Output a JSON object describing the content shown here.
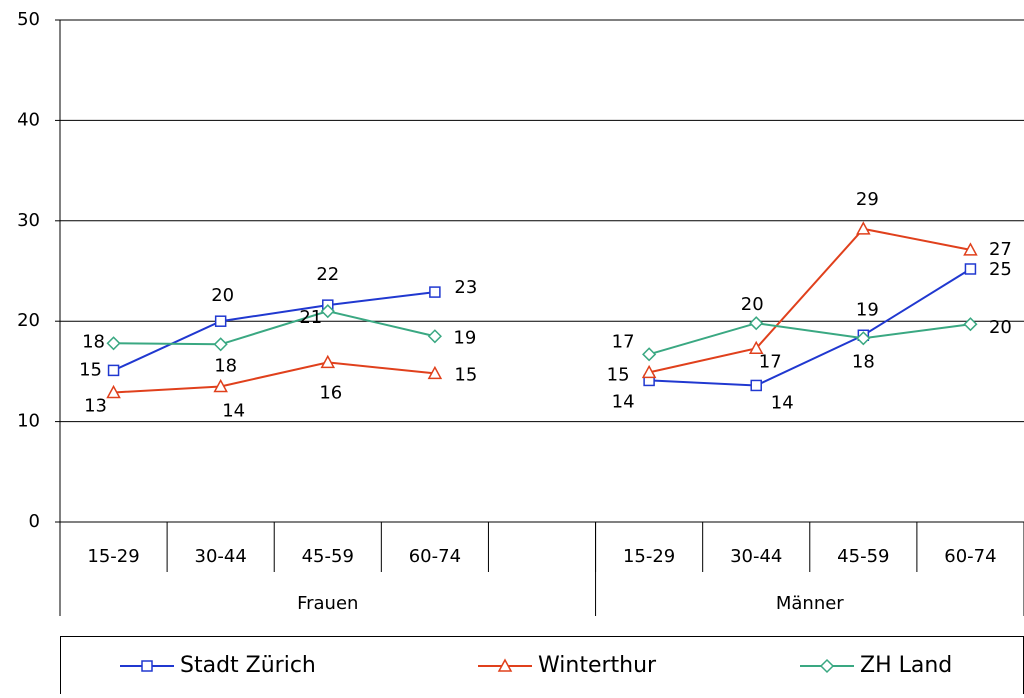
{
  "chart_data": {
    "type": "line",
    "categories": [
      "15-29",
      "30-44",
      "45-59",
      "60-74",
      null,
      "15-29",
      "30-44",
      "45-59",
      "60-74"
    ],
    "groups": [
      "Frauen",
      "Männer"
    ],
    "series": [
      {
        "name": "Stadt Zürich",
        "color": "#2038d0",
        "marker": "square",
        "values": [
          15.1,
          20.0,
          21.6,
          22.9,
          null,
          14.1,
          13.6,
          18.6,
          25.2
        ],
        "value_labels": [
          "15",
          "20",
          "22",
          "23",
          null,
          "14",
          "14",
          "19",
          "25"
        ]
      },
      {
        "name": "Winterthur",
        "color": "#e0401c",
        "marker": "triangle",
        "values": [
          12.9,
          13.5,
          15.9,
          14.8,
          null,
          14.9,
          17.3,
          29.2,
          27.1
        ],
        "value_labels": [
          "13",
          "14",
          "16",
          "15",
          null,
          "15",
          "17",
          "29",
          "27"
        ]
      },
      {
        "name": "ZH Land",
        "color": "#3aa882",
        "marker": "diamond",
        "values": [
          17.8,
          17.7,
          21.0,
          18.5,
          null,
          16.7,
          19.8,
          18.3,
          19.7
        ],
        "value_labels": [
          "18",
          "18",
          "21",
          "19",
          null,
          "17",
          "20",
          "18",
          "20"
        ]
      }
    ],
    "ylim": [
      0,
      50
    ],
    "yticks": [
      0,
      10,
      20,
      30,
      40,
      50
    ],
    "grid": true
  }
}
